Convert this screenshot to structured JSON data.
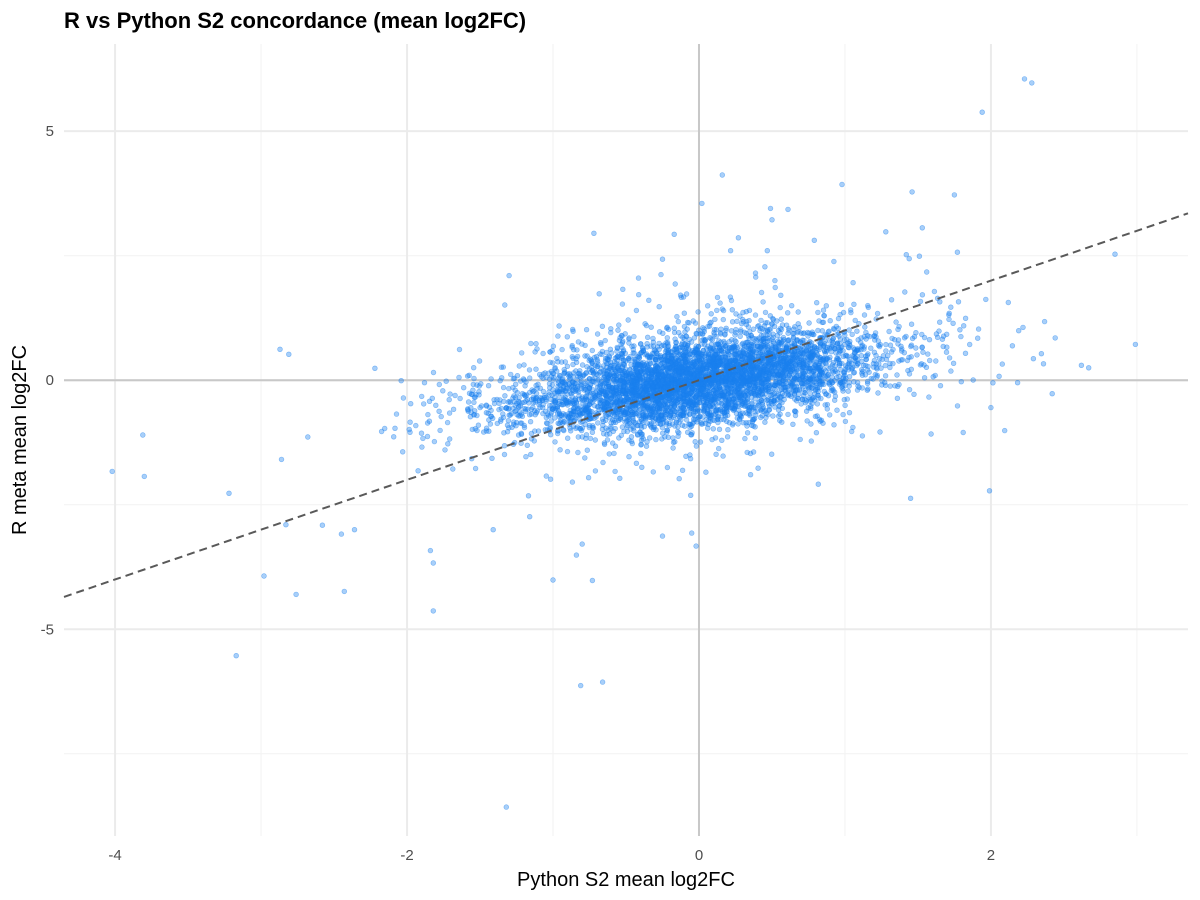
{
  "chart_data": {
    "type": "scatter",
    "title": "R vs Python S2 concordance (mean log2FC)",
    "xlabel": "Python S2 mean log2FC",
    "ylabel": "R meta mean log2FC",
    "xlim": [
      -4.35,
      3.35
    ],
    "ylim": [
      -9.15,
      6.75
    ],
    "x_ticks": [
      -4,
      -2,
      0,
      2
    ],
    "y_ticks": [
      -5,
      0,
      5
    ],
    "grid": true,
    "point_color": "#1a80f0",
    "reference_line": {
      "type": "identity",
      "style": "dashed",
      "color": "#595959"
    },
    "zero_lines_color": "#c8c8c8",
    "series": [
      {
        "values_outliers": [
          [
            2.23,
            6.05
          ],
          [
            2.28,
            5.97
          ],
          [
            1.94,
            5.38
          ],
          [
            0.16,
            4.12
          ],
          [
            0.98,
            3.93
          ],
          [
            1.46,
            3.78
          ],
          [
            1.75,
            3.72
          ],
          [
            0.02,
            3.55
          ],
          [
            0.49,
            3.45
          ],
          [
            0.61,
            3.43
          ],
          [
            0.5,
            3.22
          ],
          [
            1.53,
            3.06
          ],
          [
            -0.72,
            2.95
          ],
          [
            1.28,
            2.98
          ],
          [
            -0.17,
            2.93
          ],
          [
            0.27,
            2.86
          ],
          [
            0.79,
            2.81
          ],
          [
            2.85,
            2.53
          ],
          [
            1.42,
            2.52
          ],
          [
            1.51,
            2.49
          ],
          [
            1.77,
            2.57
          ],
          [
            1.44,
            2.44
          ],
          [
            -0.25,
            2.43
          ],
          [
            -0.26,
            2.12
          ],
          [
            2.99,
            0.72
          ],
          [
            -1.33,
            1.51
          ],
          [
            -2.87,
            0.62
          ],
          [
            -2.81,
            0.52
          ],
          [
            -2.22,
            0.24
          ],
          [
            -2.04,
            -0.01
          ],
          [
            -4.02,
            -1.83
          ],
          [
            -3.81,
            -1.1
          ],
          [
            -3.8,
            -1.93
          ],
          [
            -3.22,
            -2.27
          ],
          [
            -2.86,
            -1.59
          ],
          [
            -2.68,
            -1.14
          ],
          [
            -2.83,
            -2.9
          ],
          [
            -2.58,
            -2.91
          ],
          [
            -2.45,
            -3.09
          ],
          [
            -2.36,
            -3.0
          ],
          [
            -2.98,
            -3.93
          ],
          [
            -2.76,
            -4.3
          ],
          [
            -2.43,
            -4.24
          ],
          [
            -1.82,
            -4.63
          ],
          [
            -1.84,
            -3.42
          ],
          [
            -1.82,
            -3.67
          ],
          [
            -3.17,
            -5.53
          ],
          [
            -0.81,
            -6.13
          ],
          [
            -0.66,
            -6.06
          ],
          [
            -1.32,
            -8.57
          ],
          [
            -0.8,
            -3.29
          ],
          [
            -0.73,
            -4.02
          ],
          [
            -1.0,
            -4.01
          ],
          [
            -0.84,
            -3.51
          ],
          [
            -1.16,
            -2.74
          ],
          [
            -1.41,
            -3.0
          ],
          [
            -0.02,
            -3.33
          ],
          [
            -0.05,
            -3.07
          ],
          [
            -0.25,
            -3.13
          ],
          [
            1.45,
            -2.37
          ],
          [
            1.99,
            -2.22
          ],
          [
            2.0,
            -0.55
          ],
          [
            2.42,
            -0.27
          ],
          [
            2.36,
            0.33
          ],
          [
            2.44,
            0.85
          ],
          [
            2.22,
            1.06
          ],
          [
            2.67,
            0.25
          ],
          [
            2.62,
            0.3
          ],
          [
            1.81,
            -1.05
          ],
          [
            1.59,
            -1.08
          ],
          [
            1.24,
            -1.04
          ]
        ]
      }
    ]
  }
}
